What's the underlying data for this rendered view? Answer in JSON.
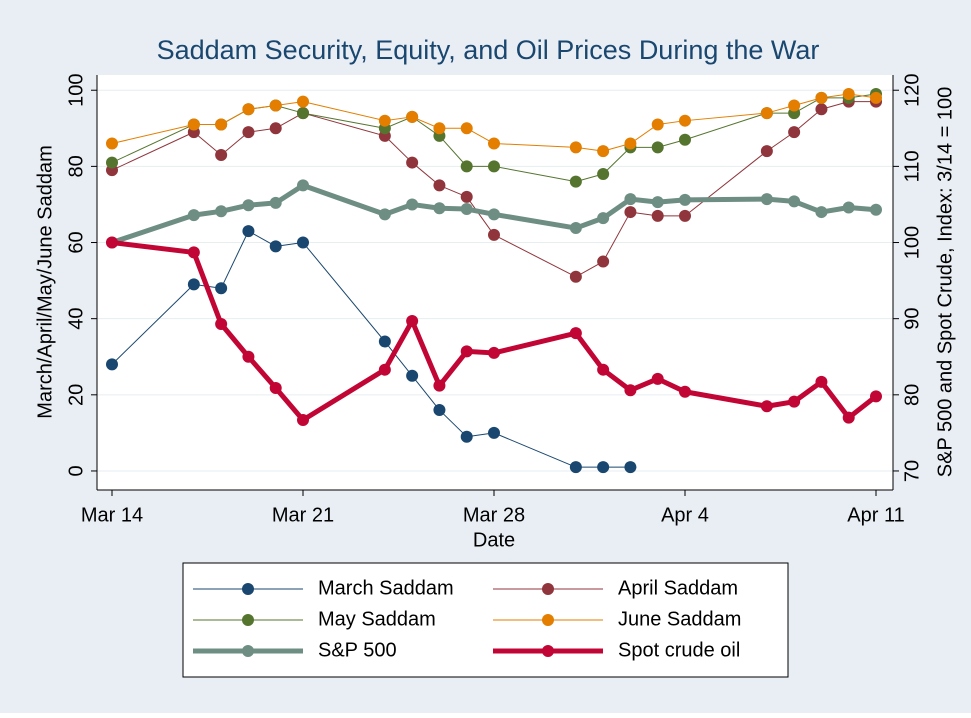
{
  "chart_data": {
    "type": "line",
    "title": "Saddam Security, Equity, and Oil Prices During the War",
    "x_label": "Date",
    "y_label": "March/April/May/June Saddam",
    "y2_label": "S&P 500 and Spot Crude, Index: 3/14 = 100",
    "x": [
      "Mar 14",
      "Mar 17",
      "Mar 18",
      "Mar 19",
      "Mar 20",
      "Mar 21",
      "Mar 24",
      "Mar 25",
      "Mar 26",
      "Mar 27",
      "Mar 28",
      "Mar 31",
      "Apr 1",
      "Apr 2",
      "Apr 3",
      "Apr 4",
      "Apr 7",
      "Apr 8",
      "Apr 9",
      "Apr 10",
      "Apr 11"
    ],
    "xticks": [
      "Mar 14",
      "Mar 21",
      "Mar 28",
      "Apr 4",
      "Apr 11"
    ],
    "ylim": [
      -5,
      104
    ],
    "yticks": [
      0,
      20,
      40,
      60,
      80,
      100
    ],
    "y2lim": [
      67.5,
      122
    ],
    "y2ticks": [
      70,
      80,
      90,
      100,
      110,
      120
    ],
    "grid": true,
    "legend": "bottom",
    "series": [
      {
        "name": "March Saddam",
        "color": "#1a476f",
        "width": 1,
        "values": [
          28,
          49,
          48,
          63,
          59,
          60,
          34,
          25,
          16,
          9,
          10,
          1,
          1,
          1,
          null,
          null,
          null,
          null,
          null,
          null,
          null
        ]
      },
      {
        "name": "April Saddam",
        "color": "#90353b",
        "width": 1,
        "values": [
          79,
          89,
          83,
          89,
          90,
          94,
          88,
          81,
          75,
          72,
          62,
          51,
          55,
          68,
          67,
          67,
          84,
          89,
          95,
          97,
          97
        ]
      },
      {
        "name": "May Saddam",
        "color": "#55752f",
        "width": 1,
        "values": [
          81,
          91,
          91,
          95,
          96,
          94,
          90,
          93,
          88,
          80,
          80,
          76,
          78,
          85,
          85,
          87,
          94,
          94,
          98,
          98,
          99
        ]
      },
      {
        "name": "June Saddam",
        "color": "#e37e00",
        "width": 1,
        "values": [
          86,
          91,
          91,
          95,
          96,
          97,
          92,
          93,
          90,
          90,
          86,
          85,
          84,
          86,
          91,
          92,
          94,
          96,
          98,
          99,
          98
        ]
      },
      {
        "name": "S&P 500",
        "color": "#6e8e84",
        "width": 5,
        "axis": "y2",
        "values": [
          100,
          103.6,
          104.1,
          104.9,
          105.2,
          107.5,
          103.7,
          105.0,
          104.5,
          104.4,
          103.7,
          101.9,
          103.2,
          105.7,
          105.3,
          105.6,
          105.7,
          105.4,
          104.0,
          104.6,
          104.3
        ]
      },
      {
        "name": "Spot crude oil",
        "color": "#c10534",
        "width": 5,
        "axis": "y2",
        "values": [
          100,
          98.7,
          89.3,
          85.0,
          80.9,
          76.7,
          83.3,
          89.7,
          81.2,
          85.7,
          85.5,
          88.1,
          83.3,
          80.6,
          82.1,
          80.4,
          78.5,
          79.1,
          81.7,
          77.0,
          79.8
        ]
      }
    ]
  }
}
